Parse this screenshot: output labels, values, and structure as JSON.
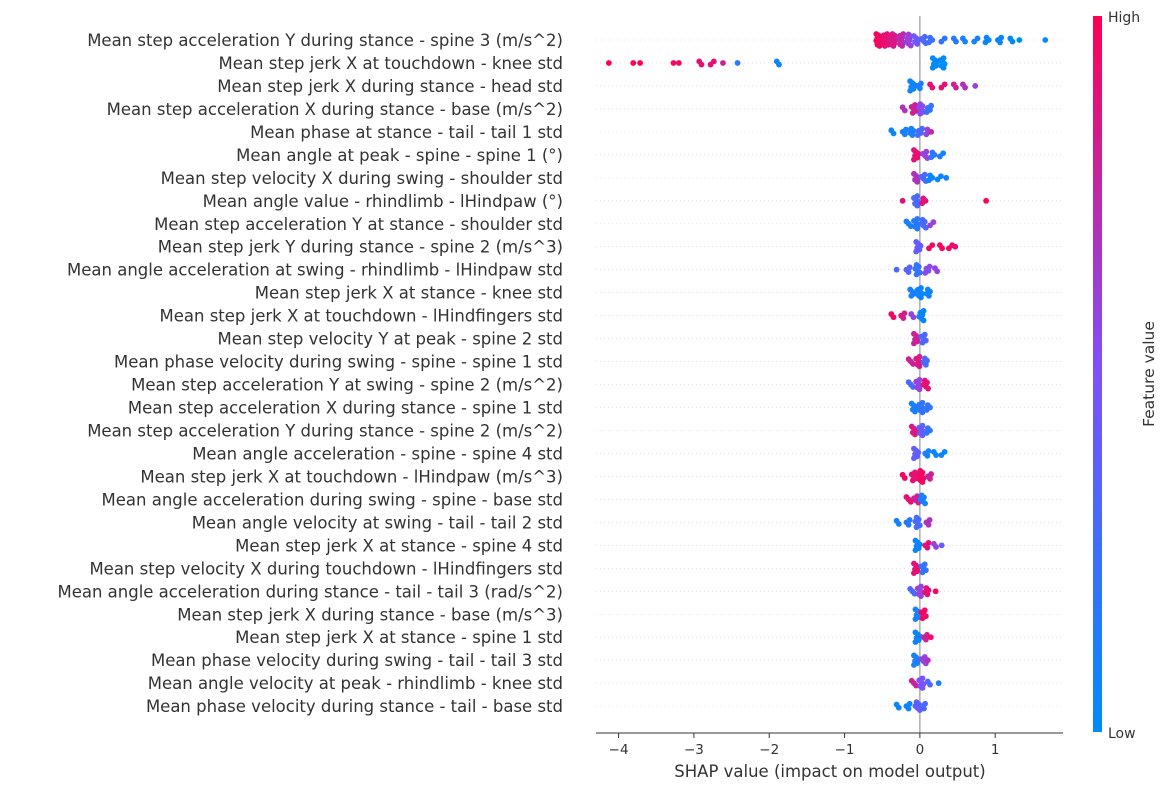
{
  "chart_data": {
    "type": "scatter",
    "subtype": "shap-beeswarm",
    "xlabel": "SHAP value (impact on model output)",
    "xlim": [
      -4.3,
      1.9
    ],
    "xticks": [
      -4,
      -3,
      -2,
      -1,
      0,
      1
    ],
    "xtick_labels": [
      "−4",
      "−3",
      "−2",
      "−1",
      "0",
      "1"
    ],
    "colorbar": {
      "title": "Feature value",
      "high_label": "High",
      "low_label": "Low",
      "low_color": "#008bfb",
      "mid_color": "#7c52ff",
      "high_color": "#ff0052"
    },
    "features": [
      {
        "name": "Mean step acceleration Y during stance - spine 3 (m/s^2)",
        "points": [
          {
            "x": -0.55,
            "v": 0.95,
            "n": 10
          },
          {
            "x": -0.45,
            "v": 0.9,
            "n": 10
          },
          {
            "x": -0.35,
            "v": 0.85,
            "n": 9
          },
          {
            "x": -0.25,
            "v": 0.75,
            "n": 8
          },
          {
            "x": -0.15,
            "v": 0.6,
            "n": 7
          },
          {
            "x": -0.05,
            "v": 0.45,
            "n": 5
          },
          {
            "x": 0.05,
            "v": 0.3,
            "n": 4
          },
          {
            "x": 0.15,
            "v": 0.25,
            "n": 3
          },
          {
            "x": 0.3,
            "v": 0.2,
            "n": 2
          },
          {
            "x": 0.45,
            "v": 0.15,
            "n": 2
          },
          {
            "x": 0.6,
            "v": 0.1,
            "n": 2
          },
          {
            "x": 0.75,
            "v": 0.1,
            "n": 2
          },
          {
            "x": 0.9,
            "v": 0.05,
            "n": 3
          },
          {
            "x": 1.05,
            "v": 0.05,
            "n": 3
          },
          {
            "x": 1.2,
            "v": 0.0,
            "n": 2
          },
          {
            "x": 1.35,
            "v": 0.0,
            "n": 1
          },
          {
            "x": 1.65,
            "v": 0.0,
            "n": 1
          }
        ]
      },
      {
        "name": "Mean step jerk X at touchdown - knee std",
        "points": [
          {
            "x": -4.1,
            "v": 1.0,
            "n": 1
          },
          {
            "x": -3.82,
            "v": 1.0,
            "n": 1
          },
          {
            "x": -3.7,
            "v": 1.0,
            "n": 1
          },
          {
            "x": -3.3,
            "v": 0.95,
            "n": 1
          },
          {
            "x": -3.2,
            "v": 0.95,
            "n": 1
          },
          {
            "x": -2.9,
            "v": 0.9,
            "n": 2
          },
          {
            "x": -2.75,
            "v": 0.9,
            "n": 2
          },
          {
            "x": -2.6,
            "v": 0.8,
            "n": 1
          },
          {
            "x": -2.45,
            "v": 0.2,
            "n": 1
          },
          {
            "x": -1.9,
            "v": 0.05,
            "n": 2
          },
          {
            "x": 0.2,
            "v": 0.0,
            "n": 6
          },
          {
            "x": 0.3,
            "v": 0.0,
            "n": 6
          }
        ]
      },
      {
        "name": "Mean step jerk X during stance - head std",
        "points": [
          {
            "x": -0.1,
            "v": 0.05,
            "n": 6
          },
          {
            "x": 0.0,
            "v": 0.1,
            "n": 3
          },
          {
            "x": 0.15,
            "v": 0.9,
            "n": 2
          },
          {
            "x": 0.3,
            "v": 0.9,
            "n": 2
          },
          {
            "x": 0.45,
            "v": 0.8,
            "n": 2
          },
          {
            "x": 0.6,
            "v": 0.7,
            "n": 2
          },
          {
            "x": 0.72,
            "v": 0.6,
            "n": 1
          }
        ]
      },
      {
        "name": "Mean step acceleration X during stance - base (m/s^2)",
        "points": [
          {
            "x": -0.2,
            "v": 0.7,
            "n": 2
          },
          {
            "x": -0.08,
            "v": 0.8,
            "n": 5
          },
          {
            "x": 0.02,
            "v": 0.55,
            "n": 6
          },
          {
            "x": 0.12,
            "v": 0.2,
            "n": 4
          }
        ]
      },
      {
        "name": "Mean phase at stance - tail - tail 1 std",
        "points": [
          {
            "x": -0.35,
            "v": 0.05,
            "n": 2
          },
          {
            "x": -0.2,
            "v": 0.1,
            "n": 3
          },
          {
            "x": -0.1,
            "v": 0.1,
            "n": 4
          },
          {
            "x": 0.0,
            "v": 0.3,
            "n": 4
          },
          {
            "x": 0.1,
            "v": 0.6,
            "n": 3
          },
          {
            "x": 0.18,
            "v": 0.75,
            "n": 1
          }
        ]
      },
      {
        "name": "Mean angle at peak - spine - spine 1 (°)",
        "points": [
          {
            "x": -0.05,
            "v": 0.9,
            "n": 6
          },
          {
            "x": 0.07,
            "v": 0.6,
            "n": 4
          },
          {
            "x": 0.18,
            "v": 0.2,
            "n": 3
          },
          {
            "x": 0.28,
            "v": 0.1,
            "n": 2
          }
        ]
      },
      {
        "name": "Mean step velocity X during swing - shoulder std",
        "points": [
          {
            "x": -0.05,
            "v": 0.7,
            "n": 5
          },
          {
            "x": 0.05,
            "v": 0.3,
            "n": 4
          },
          {
            "x": 0.15,
            "v": 0.05,
            "n": 3
          },
          {
            "x": 0.25,
            "v": 0.05,
            "n": 2
          },
          {
            "x": 0.35,
            "v": 0.05,
            "n": 1
          }
        ]
      },
      {
        "name": "Mean angle value - rhindlimb - lHindpaw (°)",
        "points": [
          {
            "x": -0.2,
            "v": 0.9,
            "n": 1
          },
          {
            "x": -0.05,
            "v": 0.3,
            "n": 6
          },
          {
            "x": 0.06,
            "v": 0.9,
            "n": 3
          },
          {
            "x": 0.85,
            "v": 1.0,
            "n": 1
          }
        ]
      },
      {
        "name": "Mean step acceleration Y at stance - shoulder std",
        "points": [
          {
            "x": -0.15,
            "v": 0.1,
            "n": 3
          },
          {
            "x": -0.05,
            "v": 0.15,
            "n": 6
          },
          {
            "x": 0.05,
            "v": 0.3,
            "n": 5
          },
          {
            "x": 0.15,
            "v": 0.6,
            "n": 2
          }
        ]
      },
      {
        "name": "Mean step jerk Y during stance - spine 2 (m/s^3)",
        "points": [
          {
            "x": -0.02,
            "v": 0.4,
            "n": 6
          },
          {
            "x": 0.15,
            "v": 0.95,
            "n": 2
          },
          {
            "x": 0.28,
            "v": 0.95,
            "n": 2
          },
          {
            "x": 0.4,
            "v": 0.95,
            "n": 2
          },
          {
            "x": 0.47,
            "v": 0.9,
            "n": 1
          }
        ]
      },
      {
        "name": "Mean angle acceleration at swing - rhindlimb - lHindpaw std",
        "points": [
          {
            "x": -0.28,
            "v": 0.3,
            "n": 1
          },
          {
            "x": -0.15,
            "v": 0.35,
            "n": 3
          },
          {
            "x": -0.03,
            "v": 0.2,
            "n": 6
          },
          {
            "x": 0.1,
            "v": 0.55,
            "n": 4
          },
          {
            "x": 0.2,
            "v": 0.6,
            "n": 2
          }
        ]
      },
      {
        "name": "Mean step jerk X at stance - knee std",
        "points": [
          {
            "x": -0.1,
            "v": 0.1,
            "n": 4
          },
          {
            "x": 0.0,
            "v": 0.05,
            "n": 6
          },
          {
            "x": 0.12,
            "v": 0.05,
            "n": 4
          }
        ]
      },
      {
        "name": "Mean step jerk X at touchdown - lHindfingers std",
        "points": [
          {
            "x": -0.35,
            "v": 0.95,
            "n": 2
          },
          {
            "x": -0.22,
            "v": 0.85,
            "n": 3
          },
          {
            "x": -0.1,
            "v": 0.6,
            "n": 2
          },
          {
            "x": 0.02,
            "v": 0.05,
            "n": 6
          }
        ]
      },
      {
        "name": "Mean step velocity Y at peak - spine 2 std",
        "points": [
          {
            "x": -0.05,
            "v": 0.8,
            "n": 6
          },
          {
            "x": 0.05,
            "v": 0.3,
            "n": 5
          }
        ]
      },
      {
        "name": "Mean phase velocity during swing - spine - spine 1 std",
        "points": [
          {
            "x": -0.12,
            "v": 0.8,
            "n": 3
          },
          {
            "x": -0.02,
            "v": 0.85,
            "n": 6
          },
          {
            "x": 0.08,
            "v": 0.3,
            "n": 4
          }
        ]
      },
      {
        "name": "Mean step acceleration Y at swing - spine 2 (m/s^2)",
        "points": [
          {
            "x": -0.12,
            "v": 0.3,
            "n": 3
          },
          {
            "x": -0.02,
            "v": 0.6,
            "n": 6
          },
          {
            "x": 0.08,
            "v": 0.9,
            "n": 5
          }
        ]
      },
      {
        "name": "Mean step acceleration X during stance - spine 1 std",
        "points": [
          {
            "x": -0.08,
            "v": 0.1,
            "n": 5
          },
          {
            "x": 0.02,
            "v": 0.2,
            "n": 6
          },
          {
            "x": 0.12,
            "v": 0.2,
            "n": 3
          }
        ]
      },
      {
        "name": "Mean step acceleration Y during stance - spine 2 (m/s^2)",
        "points": [
          {
            "x": -0.08,
            "v": 0.85,
            "n": 5
          },
          {
            "x": 0.02,
            "v": 0.4,
            "n": 6
          },
          {
            "x": 0.12,
            "v": 0.2,
            "n": 3
          }
        ]
      },
      {
        "name": "Mean angle acceleration - spine - spine 4 std",
        "points": [
          {
            "x": -0.05,
            "v": 0.4,
            "n": 6
          },
          {
            "x": 0.1,
            "v": 0.1,
            "n": 3
          },
          {
            "x": 0.2,
            "v": 0.05,
            "n": 2
          },
          {
            "x": 0.3,
            "v": 0.05,
            "n": 2
          }
        ]
      },
      {
        "name": "Mean step jerk X at touchdown - lHindpaw (m/s^3)",
        "points": [
          {
            "x": -0.2,
            "v": 0.95,
            "n": 2
          },
          {
            "x": -0.08,
            "v": 0.9,
            "n": 5
          },
          {
            "x": 0.02,
            "v": 0.95,
            "n": 7
          },
          {
            "x": 0.12,
            "v": 0.8,
            "n": 3
          }
        ]
      },
      {
        "name": "Mean angle acceleration during swing - spine - base std",
        "points": [
          {
            "x": -0.15,
            "v": 0.9,
            "n": 3
          },
          {
            "x": -0.05,
            "v": 0.8,
            "n": 4
          },
          {
            "x": 0.04,
            "v": 0.1,
            "n": 5
          }
        ]
      },
      {
        "name": "Mean angle velocity at swing - tail - tail 2 std",
        "points": [
          {
            "x": -0.28,
            "v": 0.1,
            "n": 2
          },
          {
            "x": -0.15,
            "v": 0.15,
            "n": 3
          },
          {
            "x": -0.03,
            "v": 0.3,
            "n": 6
          },
          {
            "x": 0.1,
            "v": 0.7,
            "n": 3
          }
        ]
      },
      {
        "name": "Mean step jerk X at stance - spine 4 std",
        "points": [
          {
            "x": -0.03,
            "v": 0.05,
            "n": 6
          },
          {
            "x": 0.1,
            "v": 0.9,
            "n": 3
          },
          {
            "x": 0.2,
            "v": 0.6,
            "n": 2
          },
          {
            "x": 0.26,
            "v": 0.4,
            "n": 1
          }
        ]
      },
      {
        "name": "Mean step velocity X during touchdown - lHindfingers std",
        "points": [
          {
            "x": -0.05,
            "v": 0.9,
            "n": 6
          },
          {
            "x": 0.05,
            "v": 0.2,
            "n": 5
          }
        ]
      },
      {
        "name": "Mean angle acceleration during stance - tail - tail 3 (rad/s^2)",
        "points": [
          {
            "x": -0.1,
            "v": 0.3,
            "n": 3
          },
          {
            "x": 0.0,
            "v": 0.6,
            "n": 6
          },
          {
            "x": 0.1,
            "v": 0.9,
            "n": 4
          },
          {
            "x": 0.18,
            "v": 0.95,
            "n": 1
          }
        ]
      },
      {
        "name": "Mean step jerk X during stance - base (m/s^3)",
        "points": [
          {
            "x": -0.03,
            "v": 0.1,
            "n": 6
          },
          {
            "x": 0.05,
            "v": 0.95,
            "n": 5
          }
        ]
      },
      {
        "name": "Mean step jerk X at stance - spine 1 std",
        "points": [
          {
            "x": -0.03,
            "v": 0.05,
            "n": 6
          },
          {
            "x": 0.08,
            "v": 0.8,
            "n": 3
          },
          {
            "x": 0.16,
            "v": 0.95,
            "n": 1
          }
        ]
      },
      {
        "name": "Mean phase velocity during swing - tail - tail 3 std",
        "points": [
          {
            "x": -0.05,
            "v": 0.1,
            "n": 6
          },
          {
            "x": 0.05,
            "v": 0.6,
            "n": 4
          },
          {
            "x": 0.12,
            "v": 0.7,
            "n": 1
          }
        ]
      },
      {
        "name": "Mean angle velocity at peak - rhindlimb - knee std",
        "points": [
          {
            "x": -0.08,
            "v": 0.8,
            "n": 3
          },
          {
            "x": 0.02,
            "v": 0.5,
            "n": 6
          },
          {
            "x": 0.12,
            "v": 0.3,
            "n": 2
          },
          {
            "x": 0.22,
            "v": 0.1,
            "n": 1
          }
        ]
      },
      {
        "name": "Mean phase velocity during stance - tail - base std",
        "points": [
          {
            "x": -0.28,
            "v": 0.05,
            "n": 2
          },
          {
            "x": -0.15,
            "v": 0.05,
            "n": 3
          },
          {
            "x": -0.03,
            "v": 0.4,
            "n": 5
          },
          {
            "x": 0.04,
            "v": 0.3,
            "n": 3
          }
        ]
      }
    ]
  }
}
